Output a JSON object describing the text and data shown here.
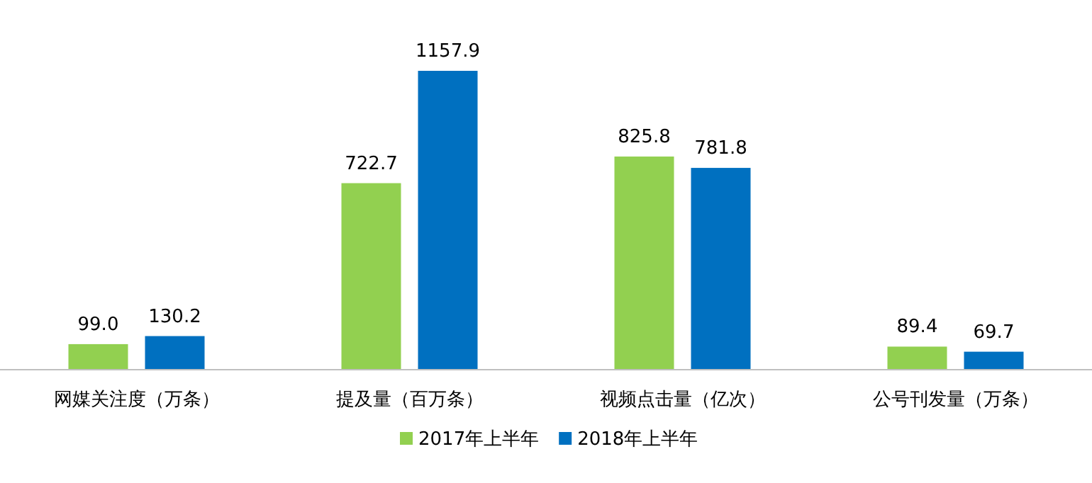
{
  "chart_data": {
    "type": "bar",
    "categories": [
      "网媒关注度（万条）",
      "提及量（百万条）",
      "视频点击量（亿次）",
      "公号刊发量（万条）"
    ],
    "series": [
      {
        "name": "2017年上半年",
        "color": "#92d050",
        "values": [
          99.0,
          722.7,
          825.8,
          89.4
        ],
        "value_labels": [
          "99.0",
          "722.7",
          "825.8",
          "89.4"
        ]
      },
      {
        "name": "2018年上半年",
        "color": "#0070c0",
        "values": [
          130.2,
          1157.9,
          781.8,
          69.7
        ],
        "value_labels": [
          "130.2",
          "1157.9",
          "781.8",
          "69.7"
        ]
      }
    ],
    "legend": "bottom",
    "grid": false
  }
}
